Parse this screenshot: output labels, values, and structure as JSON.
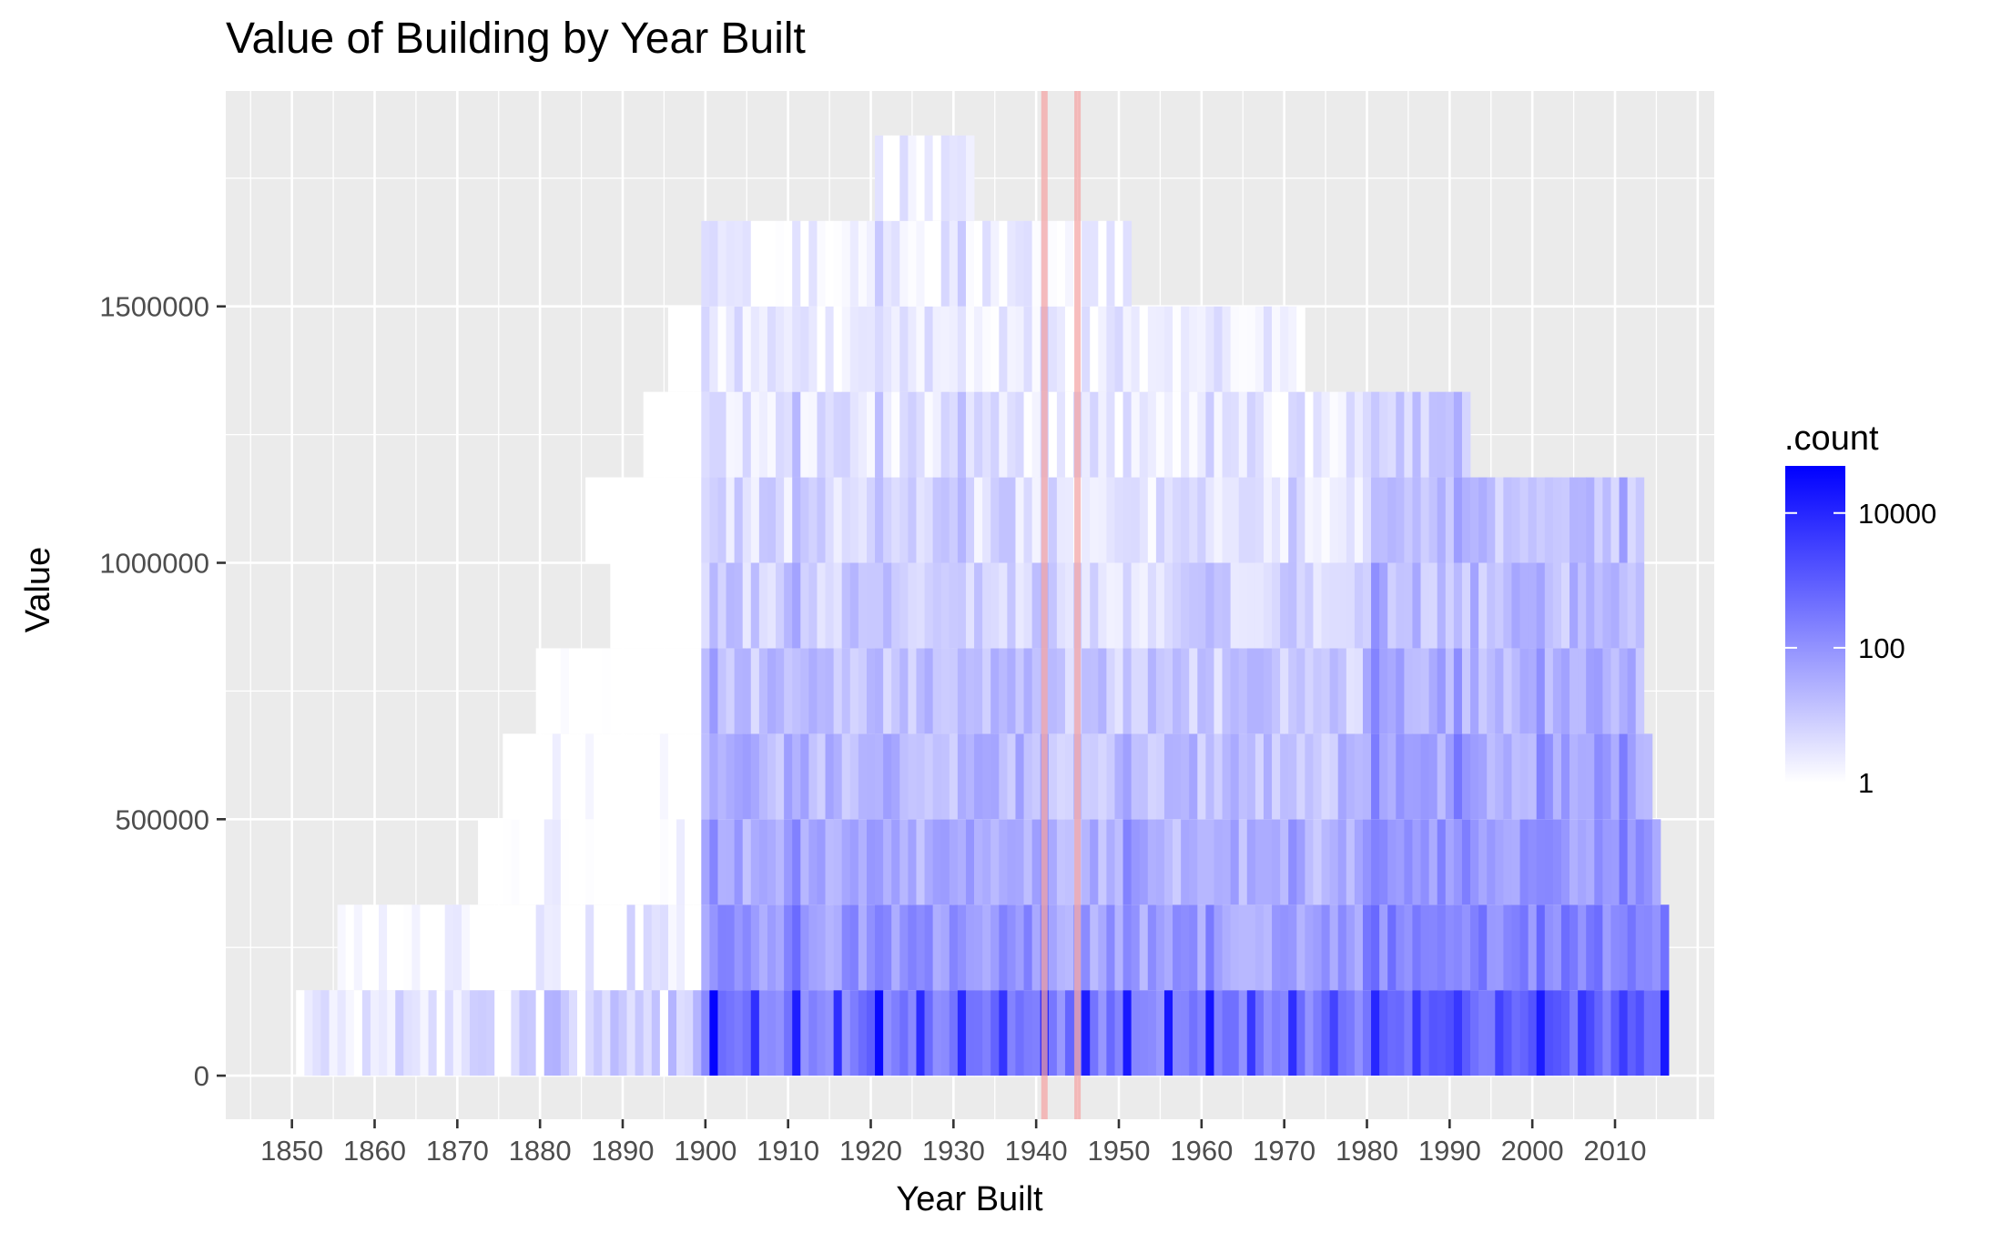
{
  "chart_data": {
    "type": "heatmap",
    "title": "Value of Building by Year Built",
    "xlabel": "Year Built",
    "ylabel": "Value",
    "x_ticks": [
      1850,
      1860,
      1870,
      1880,
      1890,
      1900,
      1910,
      1920,
      1930,
      1940,
      1950,
      1960,
      1970,
      1980,
      1990,
      2000,
      2010
    ],
    "x_tick_labels": [
      "1850",
      "1860",
      "1870",
      "1880",
      "1890",
      "1900",
      "1910",
      "1920",
      "1930",
      "1940",
      "1950",
      "1960",
      "1970",
      "1980",
      "1990",
      "2000",
      "2010"
    ],
    "y_ticks": [
      0,
      500000,
      1000000,
      1500000
    ],
    "y_tick_labels": [
      "0",
      "500000",
      "1000000",
      "1500000"
    ],
    "xlim": [
      1842,
      2022
    ],
    "ylim": [
      -85000,
      1920000
    ],
    "bin_height": 166667,
    "value_bins": [
      0,
      166667,
      333333,
      500000,
      666667,
      833333,
      1000000,
      1166667,
      1333333,
      1500000,
      1666667
    ],
    "bin_coverage_years": [
      [
        1851,
        2016
      ],
      [
        1856,
        2016
      ],
      [
        1873,
        2015
      ],
      [
        1876,
        2014
      ],
      [
        1880,
        2013
      ],
      [
        1889,
        2013
      ],
      [
        1886,
        2013
      ],
      [
        1893,
        1992
      ],
      [
        1896,
        1972
      ],
      [
        1900,
        1951
      ],
      [
        1921,
        1932
      ]
    ],
    "peak_years": [
      1901,
      1911,
      1921,
      1926,
      1931,
      1941,
      1946,
      1951,
      1956,
      1961
    ],
    "legend": {
      "title": ".count",
      "scale": "log10",
      "breaks": [
        1,
        100,
        10000
      ],
      "break_labels": [
        "1",
        "100",
        "10000"
      ],
      "range": [
        1,
        50000
      ],
      "color_low": "#ffffff",
      "color_high": "#0000ff"
    },
    "reference_lines": {
      "x": [
        1941,
        1945
      ],
      "color": "#f4a7a7"
    },
    "panel_background": "#ebebeb",
    "grid": true
  }
}
